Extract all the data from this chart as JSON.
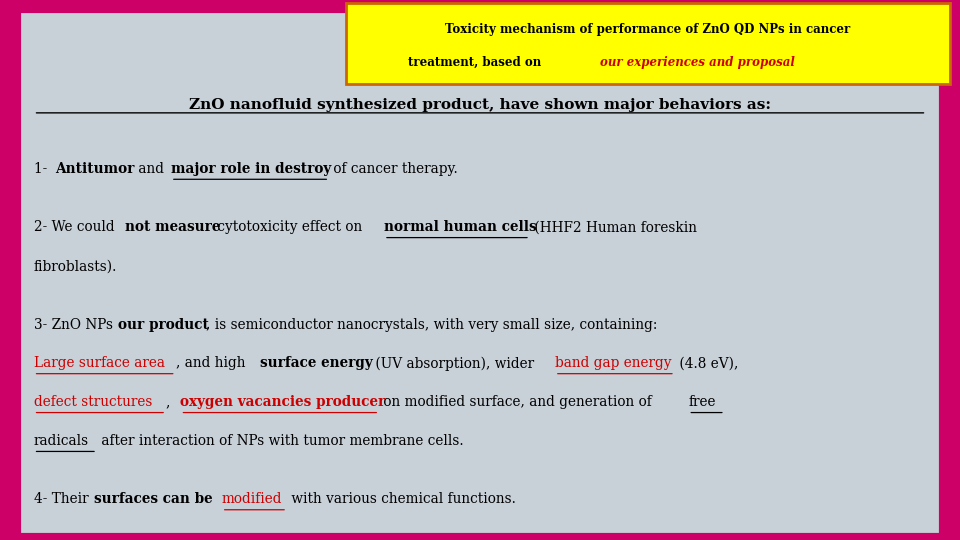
{
  "bg_color": "#c8d0d8",
  "border_color": "#cc0066",
  "title_box_color": "#ffff00",
  "title_box_border": "#cc6600",
  "title_text_color": "#000000",
  "title_red_text_color": "#cc0000",
  "title_line1": "Toxicity mechanism of performance of ZnO QD NPs in cancer",
  "title_line2_black": "treatment, based on ",
  "title_line2_red": "our experiences and proposal",
  "subtitle": "ZnO nanofluid synthesized product, have shown major behaviors as:",
  "red_color": "#cc0000",
  "black_color": "#000000",
  "figsize": [
    9.6,
    5.4
  ],
  "dpi": 100
}
